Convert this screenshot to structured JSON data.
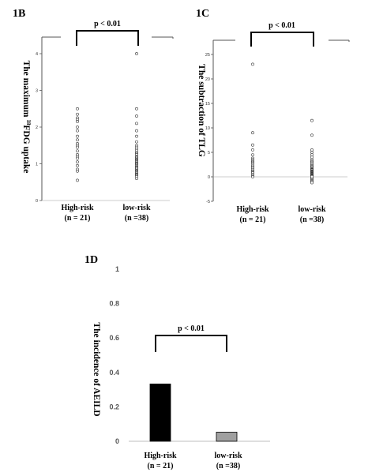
{
  "chart_data": [
    {
      "panel": "1B",
      "type": "scatter",
      "ylabel_prefix": "The maximum ",
      "ylabel_sup": "18",
      "ylabel_suffix": "FDG uptake",
      "ylim": [
        0,
        4
      ],
      "yticks": [
        "0",
        "1",
        "2",
        "3",
        "4"
      ],
      "groups": [
        {
          "label": "High-risk",
          "n": "(n = 21)",
          "values": [
            2.5,
            2.35,
            2.25,
            2.2,
            2.15,
            2.0,
            1.9,
            1.75,
            1.65,
            1.55,
            1.5,
            1.45,
            1.35,
            1.25,
            1.2,
            1.15,
            1.05,
            0.95,
            0.85,
            0.8,
            0.55
          ]
        },
        {
          "label": "low-risk",
          "n": "(n =38)",
          "values": [
            4.0,
            2.5,
            2.3,
            2.1,
            1.9,
            1.75,
            1.6,
            1.5,
            1.45,
            1.4,
            1.35,
            1.3,
            1.28,
            1.25,
            1.2,
            1.18,
            1.15,
            1.12,
            1.1,
            1.08,
            1.05,
            1.02,
            1.0,
            0.98,
            0.95,
            0.92,
            0.9,
            0.88,
            0.85,
            0.82,
            0.8,
            0.78,
            0.75,
            0.72,
            0.7,
            0.68,
            0.65,
            0.6
          ]
        }
      ],
      "annotation": "p < 0.01"
    },
    {
      "panel": "1C",
      "type": "scatter",
      "ylabel": "The subtraction of TLG",
      "ylim": [
        -5,
        25
      ],
      "yticks": [
        "-5",
        "0",
        "5",
        "10",
        "15",
        "20",
        "25"
      ],
      "groups": [
        {
          "label": "High-risk",
          "n": "(n = 21)",
          "values": [
            23,
            9,
            6.5,
            5.5,
            4.5,
            3.8,
            3.5,
            3.2,
            3.0,
            2.8,
            2.5,
            2.2,
            2.0,
            1.8,
            1.5,
            1.2,
            1.0,
            0.8,
            0.5,
            0.2,
            0
          ]
        },
        {
          "label": "low-risk",
          "n": "(n =38)",
          "values": [
            11.5,
            8.5,
            5.5,
            5.0,
            4.5,
            4.0,
            3.5,
            3.2,
            3.0,
            2.8,
            2.5,
            2.3,
            2.1,
            2.0,
            1.8,
            1.6,
            1.5,
            1.4,
            1.2,
            1.1,
            1.0,
            0.9,
            0.8,
            0.7,
            0.6,
            0.5,
            0.4,
            0.3,
            0.2,
            0.1,
            0,
            -0.2,
            -0.4,
            -0.6,
            -0.8,
            -1.0,
            -1.2,
            0.05
          ]
        }
      ],
      "annotation": "p < 0.01"
    },
    {
      "panel": "1D",
      "type": "bar",
      "ylabel": "The incidence of AEILD",
      "ylim": [
        0,
        1
      ],
      "yticks": [
        "0",
        "0.2",
        "0.4",
        "0.6",
        "0.8",
        "1"
      ],
      "categories": [
        "High-risk",
        "low-risk"
      ],
      "category_n": [
        "(n = 21)",
        "(n =38)"
      ],
      "values": [
        0.333,
        0.053
      ],
      "colors": [
        "#000000",
        "#a0a0a0"
      ],
      "annotation": "p < 0.01"
    }
  ]
}
